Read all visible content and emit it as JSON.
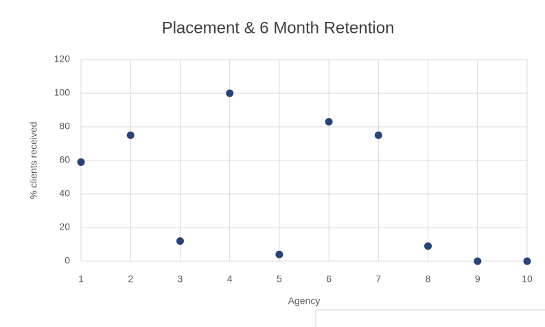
{
  "chart_data": {
    "type": "scatter",
    "title": "Placement & 6 Month Retention",
    "x_label": "Agency",
    "y_label": "% clients received",
    "series": [
      {
        "name": "Placement & 6 Month Retention",
        "color": "#264478",
        "x": [
          1,
          2,
          3,
          4,
          5,
          6,
          7,
          8,
          9,
          10
        ],
        "values": [
          59,
          75,
          12,
          100,
          4,
          83,
          75,
          9,
          0,
          0
        ]
      }
    ],
    "xlim": [
      1,
      10
    ],
    "xticks": [
      1,
      2,
      3,
      4,
      5,
      6,
      7,
      8,
      9,
      10
    ],
    "ylim": [
      0,
      120
    ],
    "yticks": [
      0,
      20,
      40,
      60,
      80,
      100,
      120
    ],
    "grid": true
  }
}
